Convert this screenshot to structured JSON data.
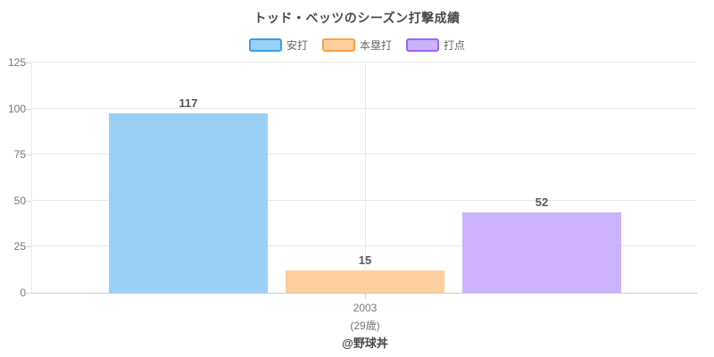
{
  "chart_data": {
    "type": "bar",
    "title": "トッド・ベッツのシーズン打撃成績",
    "categories": [
      "2003"
    ],
    "category_sublabels": [
      "(29歳)"
    ],
    "series": [
      {
        "name": "安打",
        "values": [
          117
        ],
        "fill": "#9AD0F5",
        "border": "#36A2EB"
      },
      {
        "name": "本塁打",
        "values": [
          15
        ],
        "fill": "#FFCF9F",
        "border": "#FF9F40"
      },
      {
        "name": "打点",
        "values": [
          52
        ],
        "fill": "#CCB2FF",
        "border": "#9966FF"
      }
    ],
    "displayed_values": [
      97.5,
      12,
      43.5
    ],
    "ylim": [
      0,
      125
    ],
    "yticks": [
      0,
      25,
      50,
      75,
      100,
      125
    ],
    "grid": true,
    "legend_position": "top",
    "xlabel": "",
    "ylabel": ""
  },
  "footer": {
    "credit": "@野球丼"
  }
}
